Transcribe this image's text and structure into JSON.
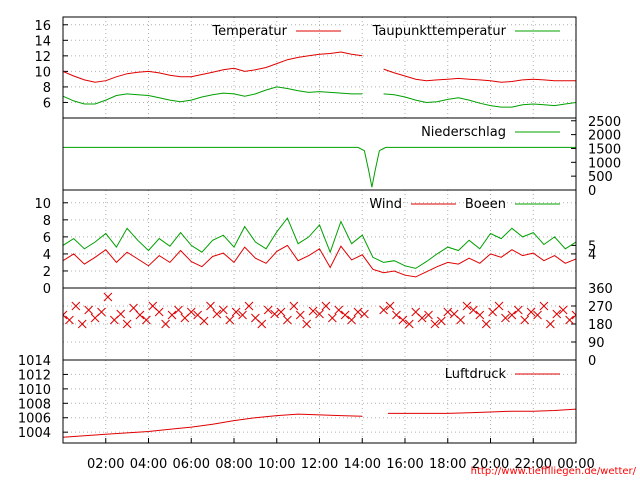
{
  "page": {
    "credit": "http://www.tiefflliegen.de/wetter/"
  },
  "colors": {
    "red": "#e00000",
    "green": "#00a000",
    "grid": "#b0b0b0",
    "credit": "#ff0000"
  },
  "x_axis": {
    "min": 0,
    "max": 24,
    "ticks": [
      {
        "v": 2,
        "label": "02:00"
      },
      {
        "v": 4,
        "label": "04:00"
      },
      {
        "v": 6,
        "label": "06:00"
      },
      {
        "v": 8,
        "label": "08:00"
      },
      {
        "v": 10,
        "label": "10:00"
      },
      {
        "v": 12,
        "label": "12:00"
      },
      {
        "v": 14,
        "label": "14:00"
      },
      {
        "v": 16,
        "label": "16:00"
      },
      {
        "v": 18,
        "label": "18:00"
      },
      {
        "v": 20,
        "label": "20:00"
      },
      {
        "v": 22,
        "label": "22:00"
      },
      {
        "v": 24,
        "label": "00:00"
      }
    ]
  },
  "chart_data": [
    {
      "type": "line",
      "ylim": [
        4,
        17
      ],
      "yticks_left": [
        "6",
        "8",
        "10",
        "12",
        "14",
        "16"
      ],
      "grid": true,
      "legend": "top-right",
      "series": [
        {
          "name": "Temperatur",
          "color": "#e00000",
          "x": [
            0,
            0.5,
            1,
            1.5,
            2,
            2.5,
            3,
            3.5,
            4,
            4.5,
            5,
            5.5,
            6,
            6.5,
            7,
            7.5,
            8,
            8.5,
            9,
            9.5,
            10,
            10.5,
            11,
            11.5,
            12,
            12.5,
            13,
            13.5,
            14,
            14.5,
            15,
            15.5,
            16,
            16.5,
            17,
            17.5,
            18,
            18.5,
            19,
            19.5,
            20,
            20.5,
            21,
            21.5,
            22,
            22.5,
            23,
            23.5,
            24
          ],
          "values": [
            10.0,
            9.4,
            8.9,
            8.6,
            8.8,
            9.3,
            9.7,
            9.9,
            10.0,
            9.8,
            9.5,
            9.3,
            9.3,
            9.6,
            9.9,
            10.2,
            10.4,
            10.0,
            10.2,
            10.5,
            11.0,
            11.5,
            11.8,
            12.0,
            12.2,
            12.3,
            12.5,
            12.2,
            12.0,
            null,
            10.3,
            9.8,
            9.4,
            9.0,
            8.8,
            8.9,
            9.0,
            9.1,
            9.0,
            8.9,
            8.8,
            8.6,
            8.7,
            8.9,
            9.0,
            8.9,
            8.8,
            8.8,
            8.8
          ]
        },
        {
          "name": "Taupunkttemperatur",
          "color": "#00a000",
          "x": [
            0,
            0.5,
            1,
            1.5,
            2,
            2.5,
            3,
            3.5,
            4,
            4.5,
            5,
            5.5,
            6,
            6.5,
            7,
            7.5,
            8,
            8.5,
            9,
            9.5,
            10,
            10.5,
            11,
            11.5,
            12,
            12.5,
            13,
            13.5,
            14,
            14.5,
            15,
            15.5,
            16,
            16.5,
            17,
            17.5,
            18,
            18.5,
            19,
            19.5,
            20,
            20.5,
            21,
            21.5,
            22,
            22.5,
            23,
            23.5,
            24
          ],
          "values": [
            6.8,
            6.2,
            5.8,
            5.8,
            6.3,
            6.9,
            7.1,
            7.0,
            6.9,
            6.6,
            6.3,
            6.1,
            6.3,
            6.7,
            7.0,
            7.2,
            7.1,
            6.8,
            7.1,
            7.6,
            8.0,
            7.8,
            7.5,
            7.3,
            7.4,
            7.3,
            7.2,
            7.1,
            7.1,
            null,
            7.1,
            7.0,
            6.7,
            6.3,
            6.0,
            6.1,
            6.4,
            6.6,
            6.3,
            5.9,
            5.6,
            5.4,
            5.4,
            5.7,
            5.8,
            5.7,
            5.6,
            5.8,
            6.0
          ]
        }
      ]
    },
    {
      "type": "line",
      "ylim": [
        0,
        2600
      ],
      "yticks_right": [
        "2500",
        "2000",
        "1500",
        "1000",
        "500",
        "0"
      ],
      "grid": false,
      "legend": "top-right",
      "series": [
        {
          "name": "Niederschlag",
          "color": "#00a000",
          "x": [
            0,
            13.8,
            14.1,
            14.3,
            14.45,
            14.6,
            14.8,
            15.1,
            24
          ],
          "values": [
            1540,
            1540,
            1420,
            700,
            100,
            700,
            1420,
            1540,
            1540
          ]
        }
      ]
    },
    {
      "type": "line",
      "ylim": [
        0,
        11.5
      ],
      "yticks_left": [
        "0",
        "2",
        "4",
        "6",
        "8",
        "10"
      ],
      "yticks_right": [
        "4",
        "5"
      ],
      "grid": true,
      "legend": "top-right",
      "series": [
        {
          "name": "Wind",
          "color": "#e00000",
          "x": [
            0,
            0.5,
            1,
            1.5,
            2,
            2.5,
            3,
            3.5,
            4,
            4.5,
            5,
            5.5,
            6,
            6.5,
            7,
            7.5,
            8,
            8.5,
            9,
            9.5,
            10,
            10.5,
            11,
            11.5,
            12,
            12.5,
            13,
            13.5,
            14,
            14.5,
            15,
            15.5,
            16,
            16.5,
            17,
            17.5,
            18,
            18.5,
            19,
            19.5,
            20,
            20.5,
            21,
            21.5,
            22,
            22.5,
            23,
            23.5,
            24
          ],
          "values": [
            3.2,
            4.0,
            2.8,
            3.6,
            4.5,
            3.0,
            4.2,
            3.4,
            2.6,
            3.8,
            3.0,
            4.4,
            3.1,
            2.5,
            3.7,
            4.1,
            3.0,
            4.8,
            3.5,
            2.9,
            4.3,
            5.0,
            3.2,
            3.8,
            4.6,
            2.4,
            4.9,
            3.3,
            3.9,
            2.2,
            1.8,
            2.0,
            1.5,
            1.3,
            1.9,
            2.5,
            3.0,
            2.8,
            3.5,
            2.9,
            4.0,
            3.6,
            4.5,
            3.8,
            4.1,
            3.2,
            3.8,
            2.9,
            3.4
          ]
        },
        {
          "name": "Boeen",
          "color": "#00a000",
          "x": [
            0,
            0.5,
            1,
            1.5,
            2,
            2.5,
            3,
            3.5,
            4,
            4.5,
            5,
            5.5,
            6,
            6.5,
            7,
            7.5,
            8,
            8.5,
            9,
            9.5,
            10,
            10.5,
            11,
            11.5,
            12,
            12.5,
            13,
            13.5,
            14,
            14.5,
            15,
            15.5,
            16,
            16.5,
            17,
            17.5,
            18,
            18.5,
            19,
            19.5,
            20,
            20.5,
            21,
            21.5,
            22,
            22.5,
            23,
            23.5,
            24
          ],
          "values": [
            5.0,
            5.8,
            4.6,
            5.4,
            6.4,
            4.8,
            7.0,
            5.6,
            4.4,
            5.8,
            4.9,
            6.5,
            5.0,
            4.2,
            5.6,
            6.2,
            4.8,
            7.2,
            5.4,
            4.6,
            6.6,
            8.2,
            5.2,
            6.0,
            7.4,
            4.2,
            7.8,
            5.2,
            6.2,
            3.6,
            3.0,
            3.2,
            2.6,
            2.3,
            3.1,
            4.0,
            4.8,
            4.4,
            5.6,
            4.6,
            6.4,
            5.8,
            7.0,
            6.0,
            6.5,
            5.1,
            6.0,
            4.6,
            5.4
          ]
        }
      ]
    },
    {
      "type": "scatter",
      "ylim": [
        0,
        360
      ],
      "yticks_right": [
        "360",
        "270",
        "180",
        "90",
        "0"
      ],
      "grid": true,
      "legend": "none",
      "series": [
        {
          "name": "",
          "color": "#e00000",
          "x": [
            0,
            0.3,
            0.6,
            0.9,
            1.2,
            1.5,
            1.8,
            2.1,
            2.4,
            2.7,
            3.0,
            3.3,
            3.6,
            3.9,
            4.2,
            4.5,
            4.8,
            5.1,
            5.4,
            5.7,
            6.0,
            6.3,
            6.6,
            6.9,
            7.2,
            7.5,
            7.8,
            8.1,
            8.4,
            8.7,
            9.0,
            9.3,
            9.6,
            9.9,
            10.2,
            10.5,
            10.8,
            11.1,
            11.4,
            11.7,
            12.0,
            12.3,
            12.6,
            12.9,
            13.2,
            13.5,
            13.8,
            14.1,
            15.0,
            15.3,
            15.6,
            15.9,
            16.2,
            16.5,
            16.8,
            17.1,
            17.4,
            17.7,
            18.0,
            18.3,
            18.6,
            18.9,
            19.2,
            19.5,
            19.8,
            20.1,
            20.4,
            20.7,
            21.0,
            21.3,
            21.6,
            21.9,
            22.2,
            22.5,
            22.8,
            23.1,
            23.4,
            23.7,
            24.0
          ],
          "values": [
            225,
            200,
            270,
            180,
            250,
            210,
            240,
            315,
            200,
            230,
            180,
            260,
            225,
            200,
            270,
            240,
            180,
            225,
            250,
            210,
            240,
            225,
            195,
            270,
            230,
            250,
            200,
            240,
            225,
            270,
            210,
            180,
            250,
            230,
            240,
            200,
            270,
            225,
            180,
            245,
            230,
            270,
            210,
            250,
            225,
            200,
            240,
            230,
            250,
            270,
            225,
            200,
            180,
            240,
            210,
            225,
            180,
            195,
            240,
            230,
            200,
            270,
            250,
            225,
            180,
            240,
            270,
            210,
            225,
            250,
            200,
            240,
            225,
            270,
            180,
            230,
            250,
            200,
            225
          ]
        }
      ]
    },
    {
      "type": "line",
      "ylim": [
        1002.5,
        1014
      ],
      "yticks_left": [
        "1004",
        "1006",
        "1008",
        "1010",
        "1012",
        "1014"
      ],
      "grid": true,
      "legend": "top-right",
      "series": [
        {
          "name": "Luftdruck",
          "color": "#e00000",
          "x": [
            0,
            1,
            2,
            3,
            4,
            5,
            6,
            7,
            8,
            9,
            10,
            11,
            12,
            13,
            14,
            14.4,
            15.2,
            16,
            17,
            18,
            19,
            20,
            21,
            22,
            23,
            24
          ],
          "values": [
            1003.3,
            1003.5,
            1003.7,
            1003.9,
            1004.1,
            1004.4,
            1004.7,
            1005.1,
            1005.6,
            1006.0,
            1006.3,
            1006.5,
            1006.4,
            1006.3,
            1006.2,
            null,
            1006.6,
            1006.6,
            1006.6,
            1006.6,
            1006.7,
            1006.8,
            1006.9,
            1006.9,
            1007.0,
            1007.2
          ]
        }
      ]
    }
  ]
}
